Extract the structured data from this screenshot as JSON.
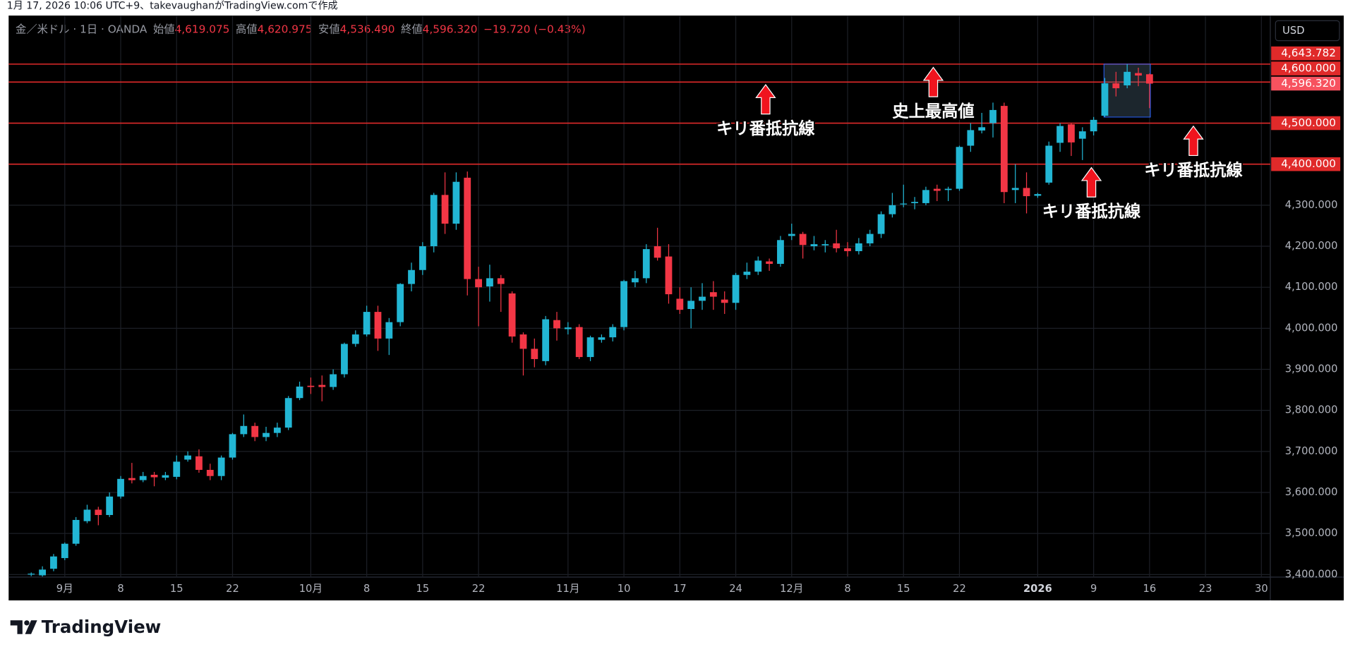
{
  "header": "1月 17, 2026 10:06 UTC+9、takevaughanがTradingView.comで作成",
  "legend": {
    "symbol": "金／米ドル · 1日 · OANDA",
    "ohlc": [
      {
        "label": "始値",
        "value": "4,619.075"
      },
      {
        "label": "高値",
        "value": "4,620.975"
      },
      {
        "label": "安値",
        "value": "4,536.490"
      },
      {
        "label": "終値",
        "value": "4,596.320"
      }
    ],
    "change": "−19.720 (−0.43%)"
  },
  "currency": "USD",
  "brand": "TradingView",
  "chart_data": {
    "type": "candlestick",
    "up_color": "#22b6d4",
    "down_color": "#f23645",
    "grid": true,
    "open": [
      3400,
      3398,
      3414,
      3440,
      3475,
      3530,
      3558,
      3545,
      3590,
      3635,
      3630,
      3643,
      3636,
      3638,
      3680,
      3688,
      3655,
      3640,
      3685,
      3742,
      3762,
      3735,
      3745,
      3758,
      3830,
      3860,
      3862,
      3857,
      3888,
      3962,
      3985,
      4040,
      3975,
      4015,
      4108,
      4142,
      4200,
      4325,
      4255,
      4367,
      4120,
      4102,
      4122,
      4085,
      3985,
      3950,
      3920,
      4020,
      3998,
      4003,
      3930,
      3972,
      3978,
      4003,
      4112,
      4122,
      4200,
      4175,
      4072,
      4047,
      4067,
      4088,
      4070,
      4062,
      4130,
      4138,
      4163,
      4157,
      4225,
      4230,
      4200,
      4202,
      4207,
      4195,
      4188,
      4207,
      4230,
      4278,
      4302,
      4305,
      4305,
      4340,
      4337,
      4340,
      4445,
      4482,
      4500,
      4542,
      4337,
      4342,
      4323,
      4355,
      4452,
      4497,
      4462,
      4480,
      4518,
      4597,
      4592,
      4622,
      4619.075
    ],
    "high": [
      3405,
      3420,
      3450,
      3478,
      3540,
      3570,
      3565,
      3600,
      3640,
      3672,
      3650,
      3650,
      3650,
      3690,
      3700,
      3705,
      3670,
      3690,
      3745,
      3790,
      3770,
      3760,
      3770,
      3835,
      3870,
      3880,
      3885,
      3900,
      3965,
      3995,
      4055,
      4055,
      4025,
      4110,
      4160,
      4210,
      4330,
      4380,
      4380,
      4382,
      4150,
      4155,
      4130,
      4090,
      3990,
      3975,
      4030,
      4040,
      4015,
      4010,
      3982,
      3985,
      4010,
      4118,
      4140,
      4205,
      4245,
      4205,
      4100,
      4100,
      4110,
      4115,
      4090,
      4135,
      4160,
      4175,
      4170,
      4225,
      4255,
      4235,
      4225,
      4215,
      4240,
      4210,
      4220,
      4240,
      4285,
      4330,
      4350,
      4320,
      4345,
      4350,
      4345,
      4445,
      4500,
      4525,
      4550,
      4550,
      4400,
      4380,
      4330,
      4455,
      4500,
      4500,
      4490,
      4515,
      4610,
      4625,
      4644,
      4635,
      4620.975
    ],
    "low": [
      3396,
      3395,
      3408,
      3435,
      3470,
      3525,
      3520,
      3540,
      3585,
      3622,
      3625,
      3615,
      3630,
      3632,
      3675,
      3648,
      3630,
      3630,
      3680,
      3735,
      3725,
      3725,
      3735,
      3752,
      3825,
      3840,
      3822,
      3850,
      3880,
      3955,
      3980,
      3945,
      3935,
      4005,
      4090,
      4130,
      4185,
      4230,
      4240,
      4080,
      4005,
      4065,
      4040,
      3965,
      3885,
      3905,
      3910,
      3970,
      3985,
      3925,
      3920,
      3965,
      3968,
      3995,
      4100,
      4110,
      4165,
      4060,
      4035,
      4000,
      4045,
      4045,
      4035,
      4045,
      4120,
      4130,
      4140,
      4150,
      4215,
      4170,
      4190,
      4185,
      4185,
      4175,
      4180,
      4200,
      4220,
      4270,
      4295,
      4290,
      4300,
      4310,
      4310,
      4335,
      4430,
      4475,
      4465,
      4305,
      4305,
      4280,
      4318,
      4350,
      4430,
      4420,
      4410,
      4470,
      4515,
      4565,
      4585,
      4590,
      4536.49
    ],
    "close": [
      3402,
      3412,
      3444,
      3475,
      3533,
      3558,
      3545,
      3590,
      3633,
      3630,
      3640,
      3637,
      3642,
      3675,
      3690,
      3655,
      3640,
      3685,
      3742,
      3762,
      3735,
      3745,
      3758,
      3830,
      3858,
      3857,
      3857,
      3888,
      3962,
      3985,
      4040,
      3975,
      4015,
      4108,
      4142,
      4200,
      4325,
      4255,
      4357,
      4120,
      4100,
      4122,
      4108,
      3980,
      3950,
      3925,
      4022,
      4000,
      4002,
      3930,
      3978,
      3978,
      4003,
      4115,
      4122,
      4193,
      4172,
      4083,
      4045,
      4067,
      4077,
      4077,
      4062,
      4130,
      4138,
      4165,
      4157,
      4215,
      4230,
      4203,
      4205,
      4205,
      4195,
      4188,
      4207,
      4230,
      4278,
      4300,
      4304,
      4308,
      4337,
      4335,
      4340,
      4442,
      4483,
      4490,
      4532,
      4332,
      4342,
      4322,
      4327,
      4445,
      4493,
      4453,
      4480,
      4508,
      4597,
      4585,
      4625,
      4616,
      4596.32
    ],
    "last_label": "4,596.320",
    "xlim": [
      -2.02,
      110.8
    ],
    "xticks": [
      {
        "value": 3,
        "label": "9月"
      },
      {
        "value": 8,
        "label": "8"
      },
      {
        "value": 13,
        "label": "15"
      },
      {
        "value": 18,
        "label": "22"
      },
      {
        "value": 25,
        "label": "10月"
      },
      {
        "value": 30,
        "label": "8"
      },
      {
        "value": 35,
        "label": "15"
      },
      {
        "value": 40,
        "label": "22"
      },
      {
        "value": 48,
        "label": "11月"
      },
      {
        "value": 53,
        "label": "10"
      },
      {
        "value": 58,
        "label": "17"
      },
      {
        "value": 63,
        "label": "24"
      },
      {
        "value": 68,
        "label": "12月"
      },
      {
        "value": 73,
        "label": "8"
      },
      {
        "value": 78,
        "label": "15"
      },
      {
        "value": 83,
        "label": "22"
      },
      {
        "value": 90,
        "label": "2026",
        "bold": true
      },
      {
        "value": 95,
        "label": "9"
      },
      {
        "value": 100,
        "label": "16"
      },
      {
        "value": 105,
        "label": "23"
      },
      {
        "value": 110,
        "label": "30"
      }
    ],
    "ylim": [
      3393.7,
      4762.1
    ],
    "yticks": [
      {
        "value": 3400,
        "label": "3,400.000"
      },
      {
        "value": 3500,
        "label": "3,500.000"
      },
      {
        "value": 3600,
        "label": "3,600.000"
      },
      {
        "value": 3700,
        "label": "3,700.000"
      },
      {
        "value": 3800,
        "label": "3,800.000"
      },
      {
        "value": 3900,
        "label": "3,900.000"
      },
      {
        "value": 4000,
        "label": "4,000.000"
      },
      {
        "value": 4100,
        "label": "4,100.000"
      },
      {
        "value": 4200,
        "label": "4,200.000"
      },
      {
        "value": 4300,
        "label": "4,300.000"
      }
    ],
    "hlines": [
      {
        "value": 4643.782,
        "label": "4,643.782"
      },
      {
        "value": 4600,
        "label": "4,600.000"
      },
      {
        "value": 4500,
        "label": "4,500.000"
      },
      {
        "value": 4400,
        "label": "4,400.000"
      }
    ],
    "hline_color": "#e02a2a",
    "range_box": {
      "x": [
        96,
        100
      ],
      "y": [
        4514.7,
        4643.782
      ]
    },
    "annotations": [
      "キリ番抵抗線",
      "史上最高値",
      "キリ番抵抗線",
      "キリ番抵抗線"
    ]
  }
}
